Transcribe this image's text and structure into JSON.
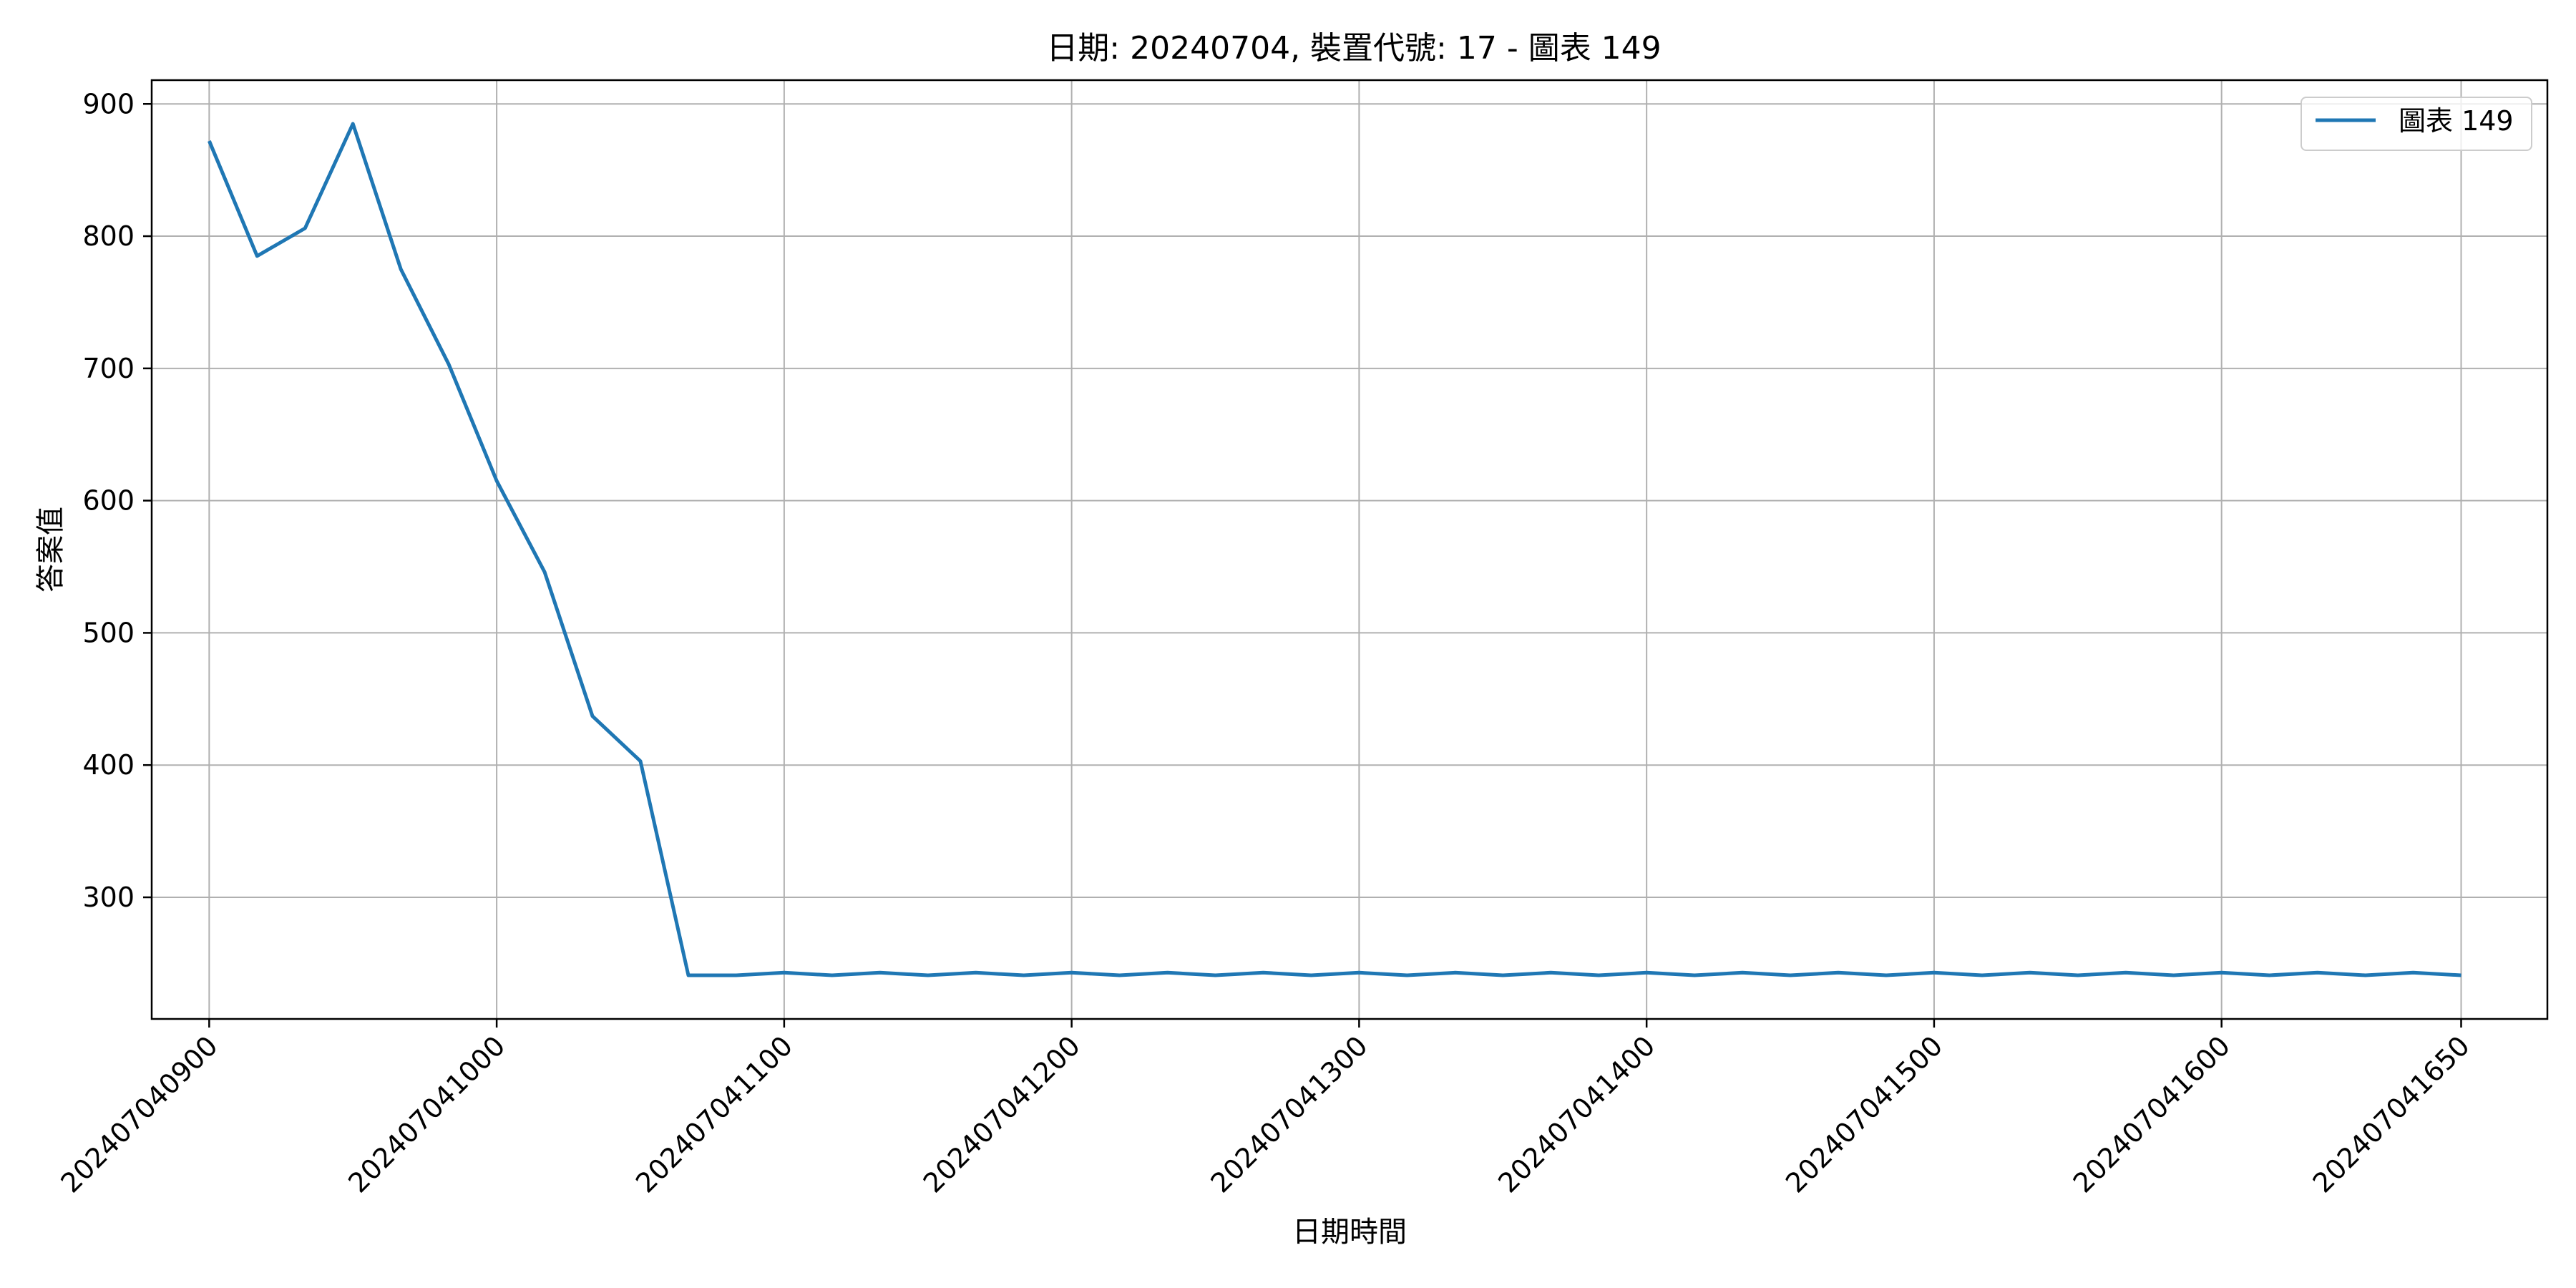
{
  "chart_data": {
    "type": "line",
    "title": "日期: 20240704, 裝置代號: 17 - 圖表 149",
    "xlabel": "日期時間",
    "ylabel": "答案值",
    "grid": true,
    "legend_position": "top-right",
    "xlim": [
      "202407040848",
      "202407041708"
    ],
    "ylim": [
      208,
      918
    ],
    "x_ticks": [
      "202407040900",
      "202407041000",
      "202407041100",
      "202407041200",
      "202407041300",
      "202407041400",
      "202407041500",
      "202407041600",
      "202407041650"
    ],
    "y_ticks": [
      300,
      400,
      500,
      600,
      700,
      800,
      900
    ],
    "series": [
      {
        "name": "圖表 149",
        "color": "#1f77b4",
        "x": [
          "202407040900",
          "202407040910",
          "202407040920",
          "202407040930",
          "202407040940",
          "202407040950",
          "202407041000",
          "202407041010",
          "202407041020",
          "202407041030",
          "202407041040",
          "202407041050",
          "202407041100",
          "202407041110",
          "202407041120",
          "202407041130",
          "202407041140",
          "202407041150",
          "202407041200",
          "202407041210",
          "202407041220",
          "202407041230",
          "202407041240",
          "202407041250",
          "202407041300",
          "202407041310",
          "202407041320",
          "202407041330",
          "202407041340",
          "202407041350",
          "202407041400",
          "202407041410",
          "202407041420",
          "202407041430",
          "202407041440",
          "202407041450",
          "202407041500",
          "202407041510",
          "202407041520",
          "202407041530",
          "202407041540",
          "202407041550",
          "202407041600",
          "202407041610",
          "202407041620",
          "202407041630",
          "202407041640",
          "202407041650"
        ],
        "values": [
          872,
          785,
          806,
          885,
          775,
          703,
          615,
          546,
          437,
          403,
          241,
          241,
          243,
          241,
          243,
          241,
          243,
          241,
          243,
          241,
          243,
          241,
          243,
          241,
          243,
          241,
          243,
          241,
          243,
          241,
          243,
          241,
          243,
          241,
          243,
          241,
          243,
          241,
          243,
          241,
          243,
          241,
          243,
          241,
          243,
          241,
          243,
          241
        ]
      }
    ]
  }
}
